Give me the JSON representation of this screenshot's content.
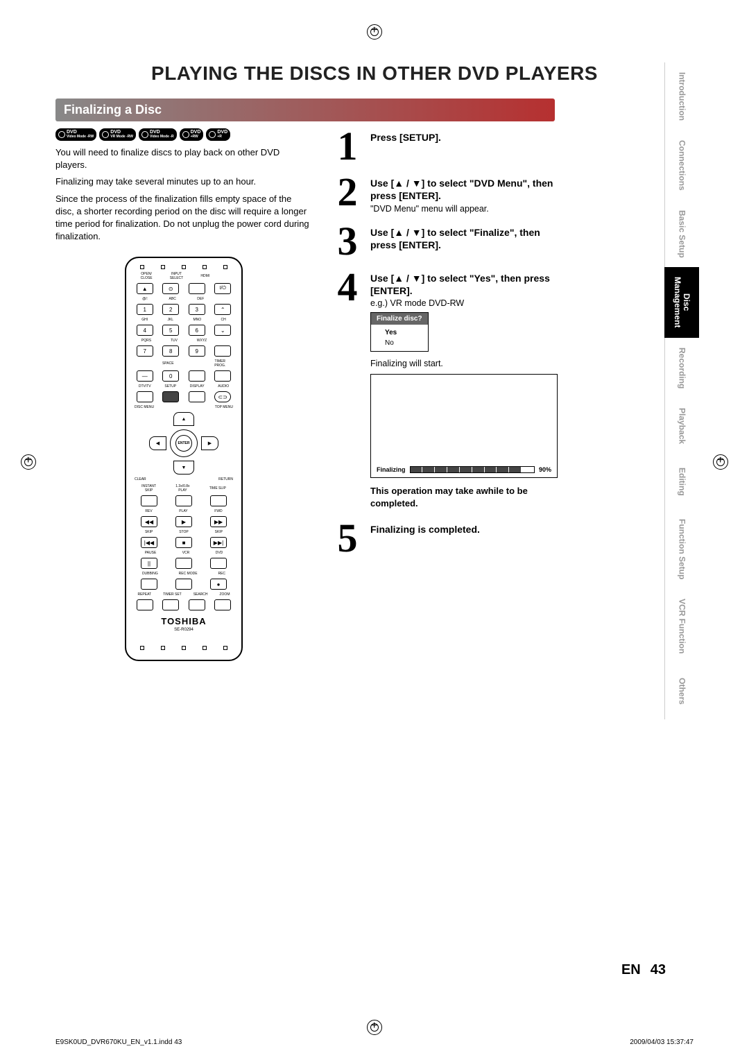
{
  "page_title": "PLAYING THE DISCS IN OTHER DVD PLAYERS",
  "section_header": "Finalizing a Disc",
  "disc_badges": [
    {
      "top": "DVD",
      "bottom": "-RW",
      "mode": "Video Mode"
    },
    {
      "top": "DVD",
      "bottom": "-RW",
      "mode": "VR Mode"
    },
    {
      "top": "DVD",
      "bottom": "-R",
      "mode": "Video Mode"
    },
    {
      "top": "DVD",
      "bottom": "+RW",
      "mode": ""
    },
    {
      "top": "DVD",
      "bottom": "+R",
      "mode": ""
    }
  ],
  "intro": {
    "p1": "You will need to finalize discs to play back on other DVD players.",
    "p2": "Finalizing may take several minutes up to an hour.",
    "p3": "Since the process of the finalization fills empty space of the disc, a shorter recording period on the disc will require a longer time period for finalization. Do not unplug the power cord during finalization."
  },
  "remote": {
    "row1": [
      "OPEN/\nCLOSE",
      "INPUT\nSELECT",
      "HDMI",
      ""
    ],
    "row1b": [
      "▲",
      "⊙",
      "",
      ""
    ],
    "row2_lbl": [
      "@/:",
      "ABC",
      "DEF",
      ""
    ],
    "row2": [
      "1",
      "2",
      "3",
      "⌃"
    ],
    "row3_lbl": [
      "GHI",
      "JKL",
      "MNO",
      "CH"
    ],
    "row3": [
      "4",
      "5",
      "6",
      "⌄"
    ],
    "row4_lbl": [
      "PQRS",
      "TUV",
      "WXYZ",
      ""
    ],
    "row4": [
      "7",
      "8",
      "9",
      ""
    ],
    "row5_lbl": [
      "",
      "SPACE",
      "",
      "TIMER\nPROG."
    ],
    "row5": [
      "—",
      "0",
      "",
      ""
    ],
    "row6_lbl": [
      "DTV/TV",
      "SETUP",
      "DISPLAY",
      "AUDIO"
    ],
    "disc_menu": "DISC MENU",
    "top_menu": "TOP MENU",
    "enter": "ENTER",
    "clear": "CLEAR",
    "return": "RETURN",
    "row_skip_lbl": [
      "INSTANT\nSKIP",
      "1.3x/0.8x\nPLAY",
      "TIME SLIP"
    ],
    "row_play_lbl": [
      "REV",
      "PLAY",
      "FWD"
    ],
    "row_play": [
      "◀◀",
      "▶",
      "▶▶"
    ],
    "row_skip2_lbl": [
      "SKIP",
      "STOP",
      "SKIP"
    ],
    "row_skip2": [
      "|◀◀",
      "■",
      "▶▶|"
    ],
    "row_pause_lbl": [
      "PAUSE",
      "VCR",
      "DVD"
    ],
    "row_pause": [
      "||",
      "",
      ""
    ],
    "row_dub_lbl": [
      "DUBBING",
      "REC MODE",
      "REC"
    ],
    "row_dub": [
      "",
      "",
      "●"
    ],
    "row_bottom_lbl": [
      "REPEAT",
      "TIMER SET",
      "SEARCH",
      "ZOOM"
    ],
    "brand": "TOSHIBA",
    "model": "SE-R0294"
  },
  "steps": [
    {
      "num": "1",
      "bold": "Press [SETUP].",
      "sub": ""
    },
    {
      "num": "2",
      "bold": "Use [▲ / ▼] to select \"DVD Menu\", then press [ENTER].",
      "sub": "\"DVD Menu\" menu will appear."
    },
    {
      "num": "3",
      "bold": "Use [▲ / ▼] to select \"Finalize\", then press [ENTER].",
      "sub": ""
    },
    {
      "num": "4",
      "bold": "Use [▲ / ▼] to select \"Yes\", then press [ENTER].",
      "sub": "e.g.) VR mode DVD-RW"
    },
    {
      "num": "5",
      "bold": "Finalizing is completed.",
      "sub": ""
    }
  ],
  "dialog": {
    "header": "Finalize disc?",
    "opt1": "Yes",
    "opt2": "No"
  },
  "finalizing_start": "Finalizing will start.",
  "progress": {
    "label": "Finalizing",
    "pct": "90%"
  },
  "note": "This operation may take awhile to be completed.",
  "side_tabs": [
    {
      "label": "Introduction",
      "active": false
    },
    {
      "label": "Connections",
      "active": false
    },
    {
      "label": "Basic Setup",
      "active": false
    },
    {
      "label": "Disc\nManagement",
      "active": true
    },
    {
      "label": "Recording",
      "active": false
    },
    {
      "label": "Playback",
      "active": false
    },
    {
      "label": "Editing",
      "active": false
    },
    {
      "label": "Function Setup",
      "active": false
    },
    {
      "label": "VCR Function",
      "active": false
    },
    {
      "label": "Others",
      "active": false
    }
  ],
  "page_num": {
    "lang": "EN",
    "num": "43"
  },
  "footer": {
    "left": "E9SK0UD_DVR670KU_EN_v1.1.indd   43",
    "right": "2009/04/03   15:37:47"
  }
}
